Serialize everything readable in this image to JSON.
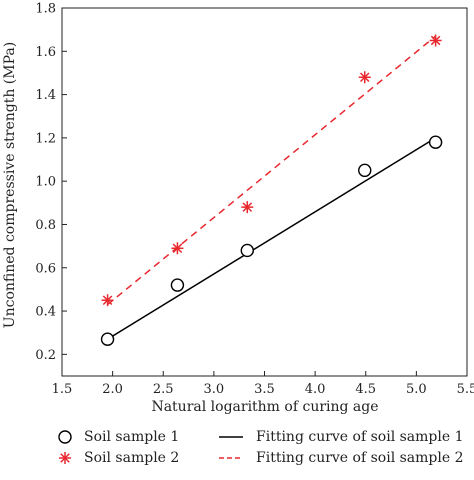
{
  "chart_data": {
    "type": "scatter",
    "title": "",
    "xlabel": "Natural logarithm of curing age",
    "ylabel": "Unconfined compressive strength (MPa)",
    "xlim": [
      1.5,
      5.5
    ],
    "ylim": [
      0.1,
      1.8
    ],
    "xticks": [
      "1.5",
      "2.0",
      "2.5",
      "3.0",
      "3.5",
      "4.0",
      "4.5",
      "5.0",
      "5.5"
    ],
    "yticks": [
      "0.2",
      "0.4",
      "0.6",
      "0.8",
      "1.0",
      "1.2",
      "1.4",
      "1.6",
      "1.8"
    ],
    "grid": false,
    "legend_position": "bottom",
    "series": [
      {
        "name": "Soil sample 1",
        "marker": "circle",
        "color": "#000000",
        "x": [
          1.95,
          2.64,
          3.33,
          4.49,
          5.19
        ],
        "y": [
          0.27,
          0.52,
          0.68,
          1.05,
          1.18
        ]
      },
      {
        "name": "Soil sample 2",
        "marker": "asterisk",
        "color": "#e8282e",
        "x": [
          1.95,
          2.64,
          3.33,
          4.49,
          5.19
        ],
        "y": [
          0.45,
          0.69,
          0.88,
          1.48,
          1.65
        ]
      }
    ],
    "fits": [
      {
        "name": "Fitting curve of soil sample 1",
        "style": "solid",
        "color": "#000000",
        "x": [
          1.95,
          5.19
        ],
        "y": [
          0.27,
          1.2
        ]
      },
      {
        "name": "Fitting curve of soil sample 2",
        "style": "dashed",
        "color": "#e8282e",
        "x": [
          1.95,
          5.19
        ],
        "y": [
          0.43,
          1.67
        ]
      }
    ]
  }
}
